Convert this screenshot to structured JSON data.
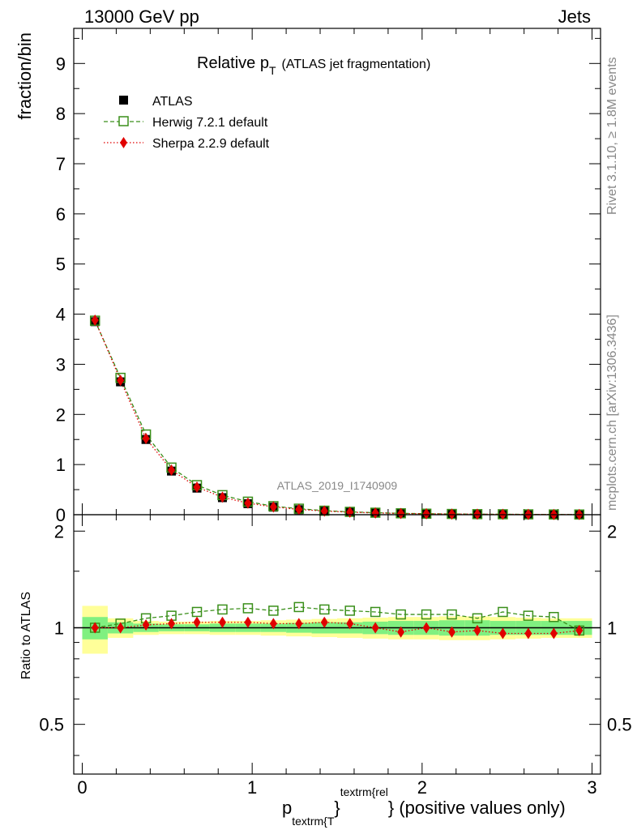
{
  "header": {
    "left": "13000 GeV pp",
    "right": "Jets"
  },
  "side": {
    "rivet": "Rivet 3.1.10, ≥ 1.8M events",
    "mcplots": "mcplots.cern.ch [arXiv:1306.3436]"
  },
  "chart_data": [
    {
      "type": "scatter",
      "title_main": "Relative p",
      "title_sub": "T",
      "title_rest": "(ATLAS jet fragmentation)",
      "ylabel": "fraction/bin",
      "watermark": "ATLAS_2019_I1740909",
      "ylim": [
        0,
        9.7
      ],
      "yticks": [
        "0",
        "1",
        "2",
        "3",
        "4",
        "5",
        "6",
        "7",
        "8",
        "9"
      ],
      "x": [
        0.075,
        0.225,
        0.375,
        0.525,
        0.675,
        0.825,
        0.975,
        1.125,
        1.275,
        1.425,
        1.575,
        1.725,
        1.875,
        2.025,
        2.175,
        2.325,
        2.475,
        2.625,
        2.775,
        2.925
      ],
      "legend_position": "top-left",
      "series": [
        {
          "name": "ATLAS",
          "color": "#000000",
          "marker": "filled-square",
          "values": [
            3.85,
            2.65,
            1.5,
            0.87,
            0.53,
            0.34,
            0.22,
            0.15,
            0.1,
            0.07,
            0.05,
            0.035,
            0.025,
            0.018,
            0.013,
            0.01,
            0.008,
            0.006,
            0.005,
            0.004
          ]
        },
        {
          "name": "Herwig 7.2.1 default",
          "color": "#3a8f1a",
          "marker": "open-square",
          "line": "dashed",
          "values": [
            3.87,
            2.73,
            1.6,
            0.94,
            0.59,
            0.39,
            0.26,
            0.17,
            0.12,
            0.08,
            0.057,
            0.04,
            0.028,
            0.02,
            0.015,
            0.011,
            0.009,
            0.007,
            0.005,
            0.004
          ]
        },
        {
          "name": "Sherpa 2.2.9 default",
          "color": "#e00000",
          "marker": "filled-diamond",
          "line": "dotted",
          "values": [
            3.88,
            2.68,
            1.52,
            0.89,
            0.55,
            0.35,
            0.23,
            0.155,
            0.105,
            0.072,
            0.051,
            0.035,
            0.024,
            0.018,
            0.013,
            0.0098,
            0.0077,
            0.0058,
            0.0048,
            0.0039
          ]
        }
      ]
    },
    {
      "type": "scatter",
      "ylabel": "Ratio to ATLAS",
      "xlabel_main": "p",
      "xlabel_sub": "textrm{T",
      "xlabel_brace": "}",
      "xlabel_sup": "textrm{rel",
      "xlabel_tail": "} (positive values only)",
      "xlim": [
        -0.05,
        3.05
      ],
      "ylim": [
        0.35,
        2.25
      ],
      "yticks": [
        {
          "v": 0.5,
          "label": "0.5"
        },
        {
          "v": 1,
          "label": "1"
        },
        {
          "v": 2,
          "label": "2"
        }
      ],
      "xticks": [
        {
          "v": 0,
          "label": "0"
        },
        {
          "v": 1,
          "label": "1"
        },
        {
          "v": 2,
          "label": "2"
        },
        {
          "v": 3,
          "label": "3"
        }
      ],
      "x": [
        0.075,
        0.225,
        0.375,
        0.525,
        0.675,
        0.825,
        0.975,
        1.125,
        1.275,
        1.425,
        1.575,
        1.725,
        1.875,
        2.025,
        2.175,
        2.325,
        2.475,
        2.625,
        2.775,
        2.925
      ],
      "band_inner": [
        0.08,
        0.04,
        0.03,
        0.025,
        0.025,
        0.03,
        0.03,
        0.03,
        0.035,
        0.04,
        0.04,
        0.045,
        0.05,
        0.05,
        0.055,
        0.055,
        0.05,
        0.05,
        0.05,
        0.05
      ],
      "band_outer": [
        0.17,
        0.07,
        0.05,
        0.045,
        0.045,
        0.05,
        0.05,
        0.055,
        0.06,
        0.065,
        0.07,
        0.075,
        0.08,
        0.08,
        0.085,
        0.085,
        0.08,
        0.075,
        0.07,
        0.07
      ],
      "band_colors": {
        "inner": "#80f080",
        "outer": "#ffff99"
      },
      "series": [
        {
          "name": "Herwig 7.2.1 default",
          "color": "#3a8f1a",
          "values": [
            1.0,
            1.03,
            1.07,
            1.09,
            1.12,
            1.14,
            1.15,
            1.13,
            1.16,
            1.14,
            1.13,
            1.12,
            1.1,
            1.1,
            1.1,
            1.07,
            1.12,
            1.09,
            1.08,
            0.98
          ]
        },
        {
          "name": "Sherpa 2.2.9 default",
          "color": "#e00000",
          "values": [
            1.0,
            1.0,
            1.02,
            1.03,
            1.04,
            1.04,
            1.04,
            1.03,
            1.03,
            1.04,
            1.03,
            1.0,
            0.97,
            1.0,
            0.97,
            0.98,
            0.96,
            0.96,
            0.96,
            0.98
          ]
        }
      ]
    }
  ]
}
